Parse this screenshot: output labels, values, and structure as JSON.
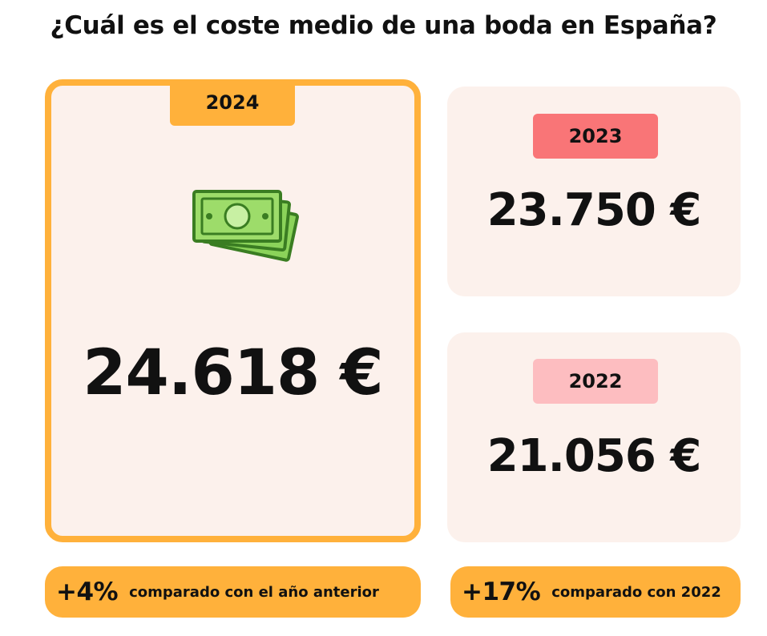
{
  "title": "¿Cuál es el coste medio de una boda en España?",
  "cards": {
    "current": {
      "year": "2024",
      "value": "24.618 €"
    },
    "prev1": {
      "year": "2023",
      "value": "23.750 €"
    },
    "prev2": {
      "year": "2022",
      "value": "21.056 €"
    }
  },
  "icons": {
    "money": "money-bills-icon"
  },
  "comparisons": [
    {
      "pct": "+4%",
      "text": "comparado con el año anterior"
    },
    {
      "pct": "+17%",
      "text": "comparado con 2022"
    }
  ],
  "colors": {
    "accent": "#ffb13b",
    "card_bg": "#fcf1ec",
    "tab_2023": "#f97577",
    "tab_2022": "#fdbdc0",
    "money_green": "#8bd35a"
  }
}
